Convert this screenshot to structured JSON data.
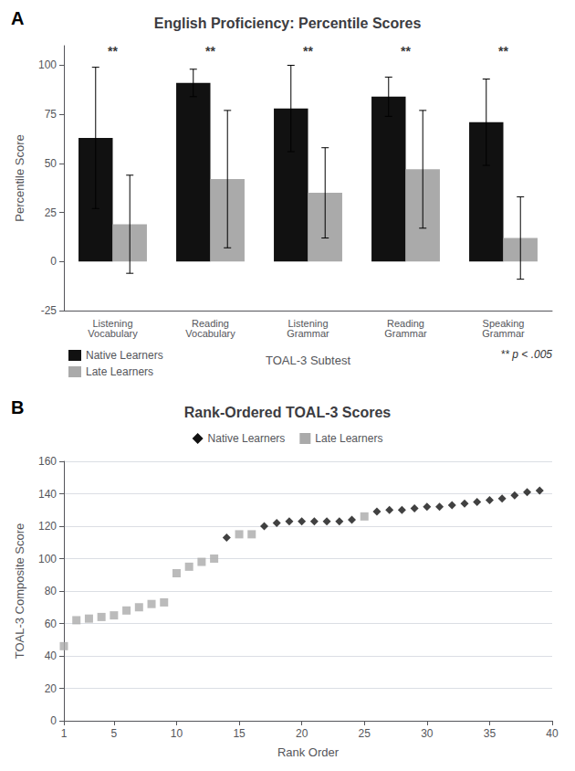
{
  "chart_data": [
    {
      "type": "bar",
      "panel_label": "A",
      "title": "English Proficiency: Percentile Scores",
      "categories": [
        "Listening\nVocabulary",
        "Reading\nVocabulary",
        "Listening\nGrammar",
        "Reading\nGrammar",
        "Speaking\nGrammar"
      ],
      "series": [
        {
          "name": "Native Learners",
          "color": "#111111",
          "values": [
            63,
            91,
            78,
            84,
            71
          ],
          "errors": [
            36,
            7,
            22,
            10,
            22
          ]
        },
        {
          "name": "Late Learners",
          "color": "#aaaaaa",
          "values": [
            19,
            42,
            35,
            47,
            12
          ],
          "errors": [
            25,
            35,
            23,
            30,
            21
          ]
        }
      ],
      "xlabel": "TOAL-3 Subtest",
      "ylabel": "Percentile Score",
      "ylim": [
        -25,
        110
      ],
      "yticks": [
        -25,
        0,
        25,
        50,
        75,
        100
      ],
      "grid": false,
      "legend": "lower left",
      "annotations": [
        {
          "text": "**",
          "category": "Listening\nVocabulary",
          "y": 104
        },
        {
          "text": "**",
          "category": "Reading\nVocabulary",
          "y": 104
        },
        {
          "text": "**",
          "category": "Listening\nGrammar",
          "y": 104
        },
        {
          "text": "**",
          "category": "Reading\nGrammar",
          "y": 104
        },
        {
          "text": "**",
          "category": "Speaking\nGrammar",
          "y": 104
        }
      ],
      "note": "** p < .005"
    },
    {
      "type": "scatter",
      "panel_label": "B",
      "title": "Rank-Ordered TOAL-3 Scores",
      "xlabel": "Rank Order",
      "ylabel": "TOAL-3 Composite Score",
      "xlim": [
        1,
        40
      ],
      "xticks": [
        1,
        5,
        10,
        15,
        20,
        25,
        30,
        35,
        40
      ],
      "ylim": [
        0,
        160
      ],
      "yticks": [
        0,
        20,
        40,
        60,
        80,
        100,
        120,
        140,
        160
      ],
      "grid": true,
      "legend": "upper center",
      "series": [
        {
          "name": "Late Learners",
          "color": "#aaaaaa",
          "marker": "square",
          "x": [
            1,
            2,
            3,
            4,
            5,
            6,
            7,
            8,
            9,
            10,
            11,
            12,
            13,
            15,
            16,
            25
          ],
          "values": [
            46,
            62,
            63,
            64,
            65,
            68,
            70,
            72,
            73,
            91,
            95,
            98,
            100,
            115,
            115,
            126
          ]
        },
        {
          "name": "Native Learners",
          "color": "#111111",
          "marker": "diamond",
          "x": [
            14,
            17,
            18,
            19,
            20,
            21,
            22,
            23,
            24,
            26,
            27,
            28,
            29,
            30,
            31,
            32,
            33,
            34,
            35,
            36,
            37,
            38,
            39
          ],
          "values": [
            113,
            120,
            122,
            123,
            123,
            123,
            123,
            123,
            124,
            129,
            130,
            130,
            131,
            132,
            132,
            133,
            134,
            135,
            136,
            137,
            139,
            141,
            142
          ]
        }
      ]
    }
  ]
}
